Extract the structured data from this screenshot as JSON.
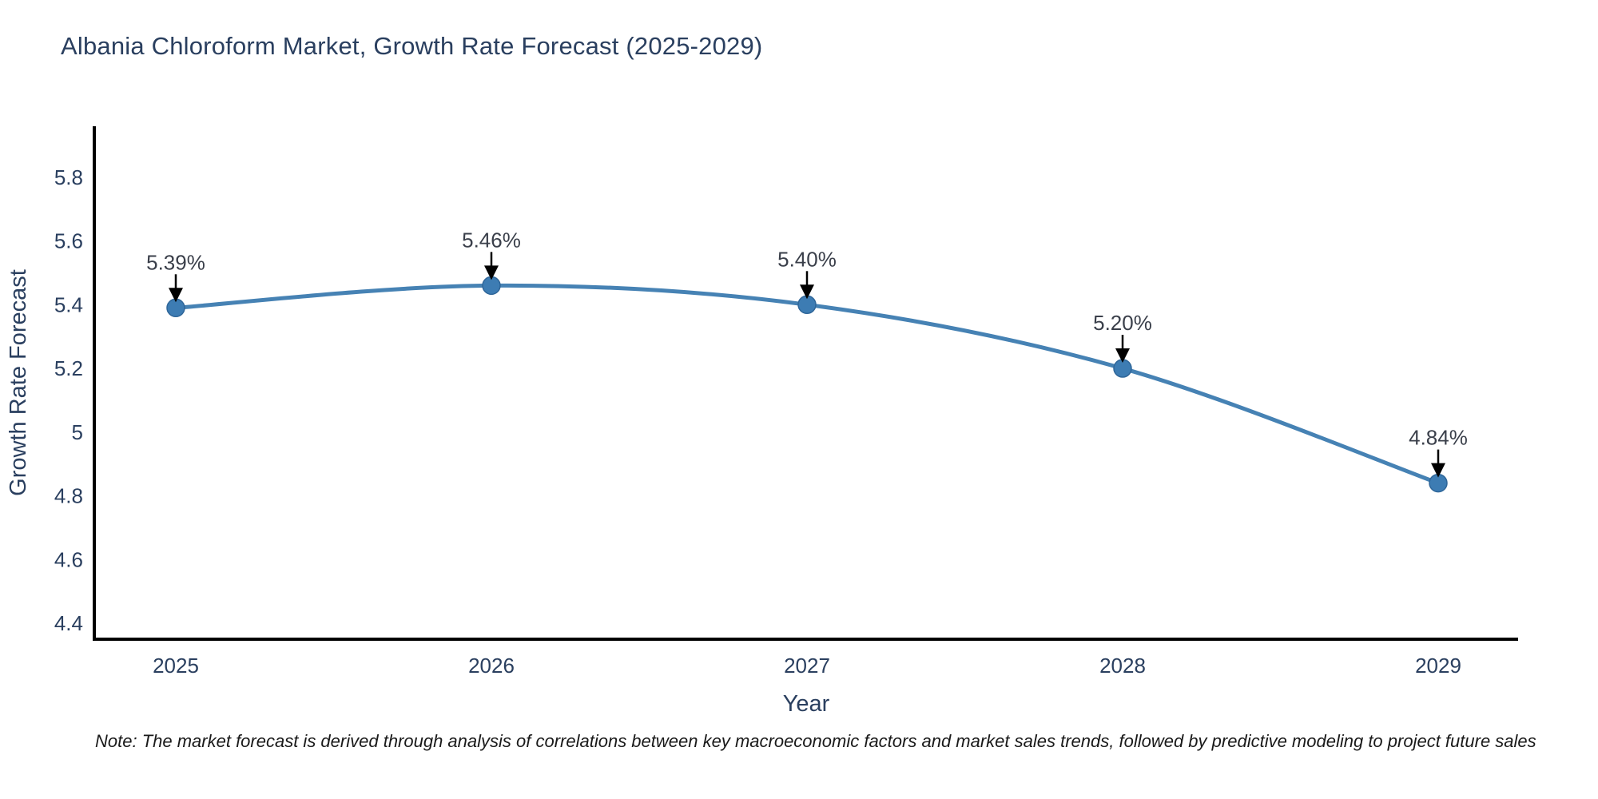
{
  "chart": {
    "title": "Albania Chloroform Market, Growth Rate Forecast (2025-2029)",
    "note": "Note: The market forecast is derived through analysis of correlations between key macroeconomic factors and market sales trends, followed by predictive modeling to project future sales",
    "colors": {
      "line": "#4682b4",
      "marker_fill": "#3d7cb3",
      "marker_edge": "#2f6699",
      "axis_line": "#000000",
      "tick_text": "#2a3f5f",
      "annotation_text": "#3a3f4a",
      "annotation_arrow": "#000000",
      "note_text": "#1a1a1a",
      "background": "#ffffff"
    }
  },
  "chart_data": {
    "type": "line",
    "title": "Albania Chloroform Market, Growth Rate Forecast (2025-2029)",
    "xlabel": "Year",
    "ylabel": "Growth Rate Forecast",
    "x": [
      2025,
      2026,
      2027,
      2028,
      2029
    ],
    "series": [
      {
        "name": "Growth Rate Forecast",
        "values": [
          5.39,
          5.46,
          5.4,
          5.2,
          4.84
        ],
        "point_labels": [
          "5.39%",
          "5.46%",
          "5.40%",
          "5.20%",
          "4.84%"
        ]
      }
    ],
    "x_tick_labels": [
      "2025",
      "2026",
      "2027",
      "2028",
      "2029"
    ],
    "y_tick_labels": [
      "5.8",
      "5.6",
      "5.4",
      "5.2",
      "5",
      "4.8",
      "4.6",
      "4.4"
    ],
    "y_ticks": [
      5.8,
      5.6,
      5.4,
      5.2,
      5.0,
      4.8,
      4.6,
      4.4
    ],
    "ylim": [
      4.35,
      5.96
    ],
    "grid": false,
    "legend_visible": false,
    "line_shape": "spline",
    "markers": true,
    "annotations_have_arrows": true
  }
}
